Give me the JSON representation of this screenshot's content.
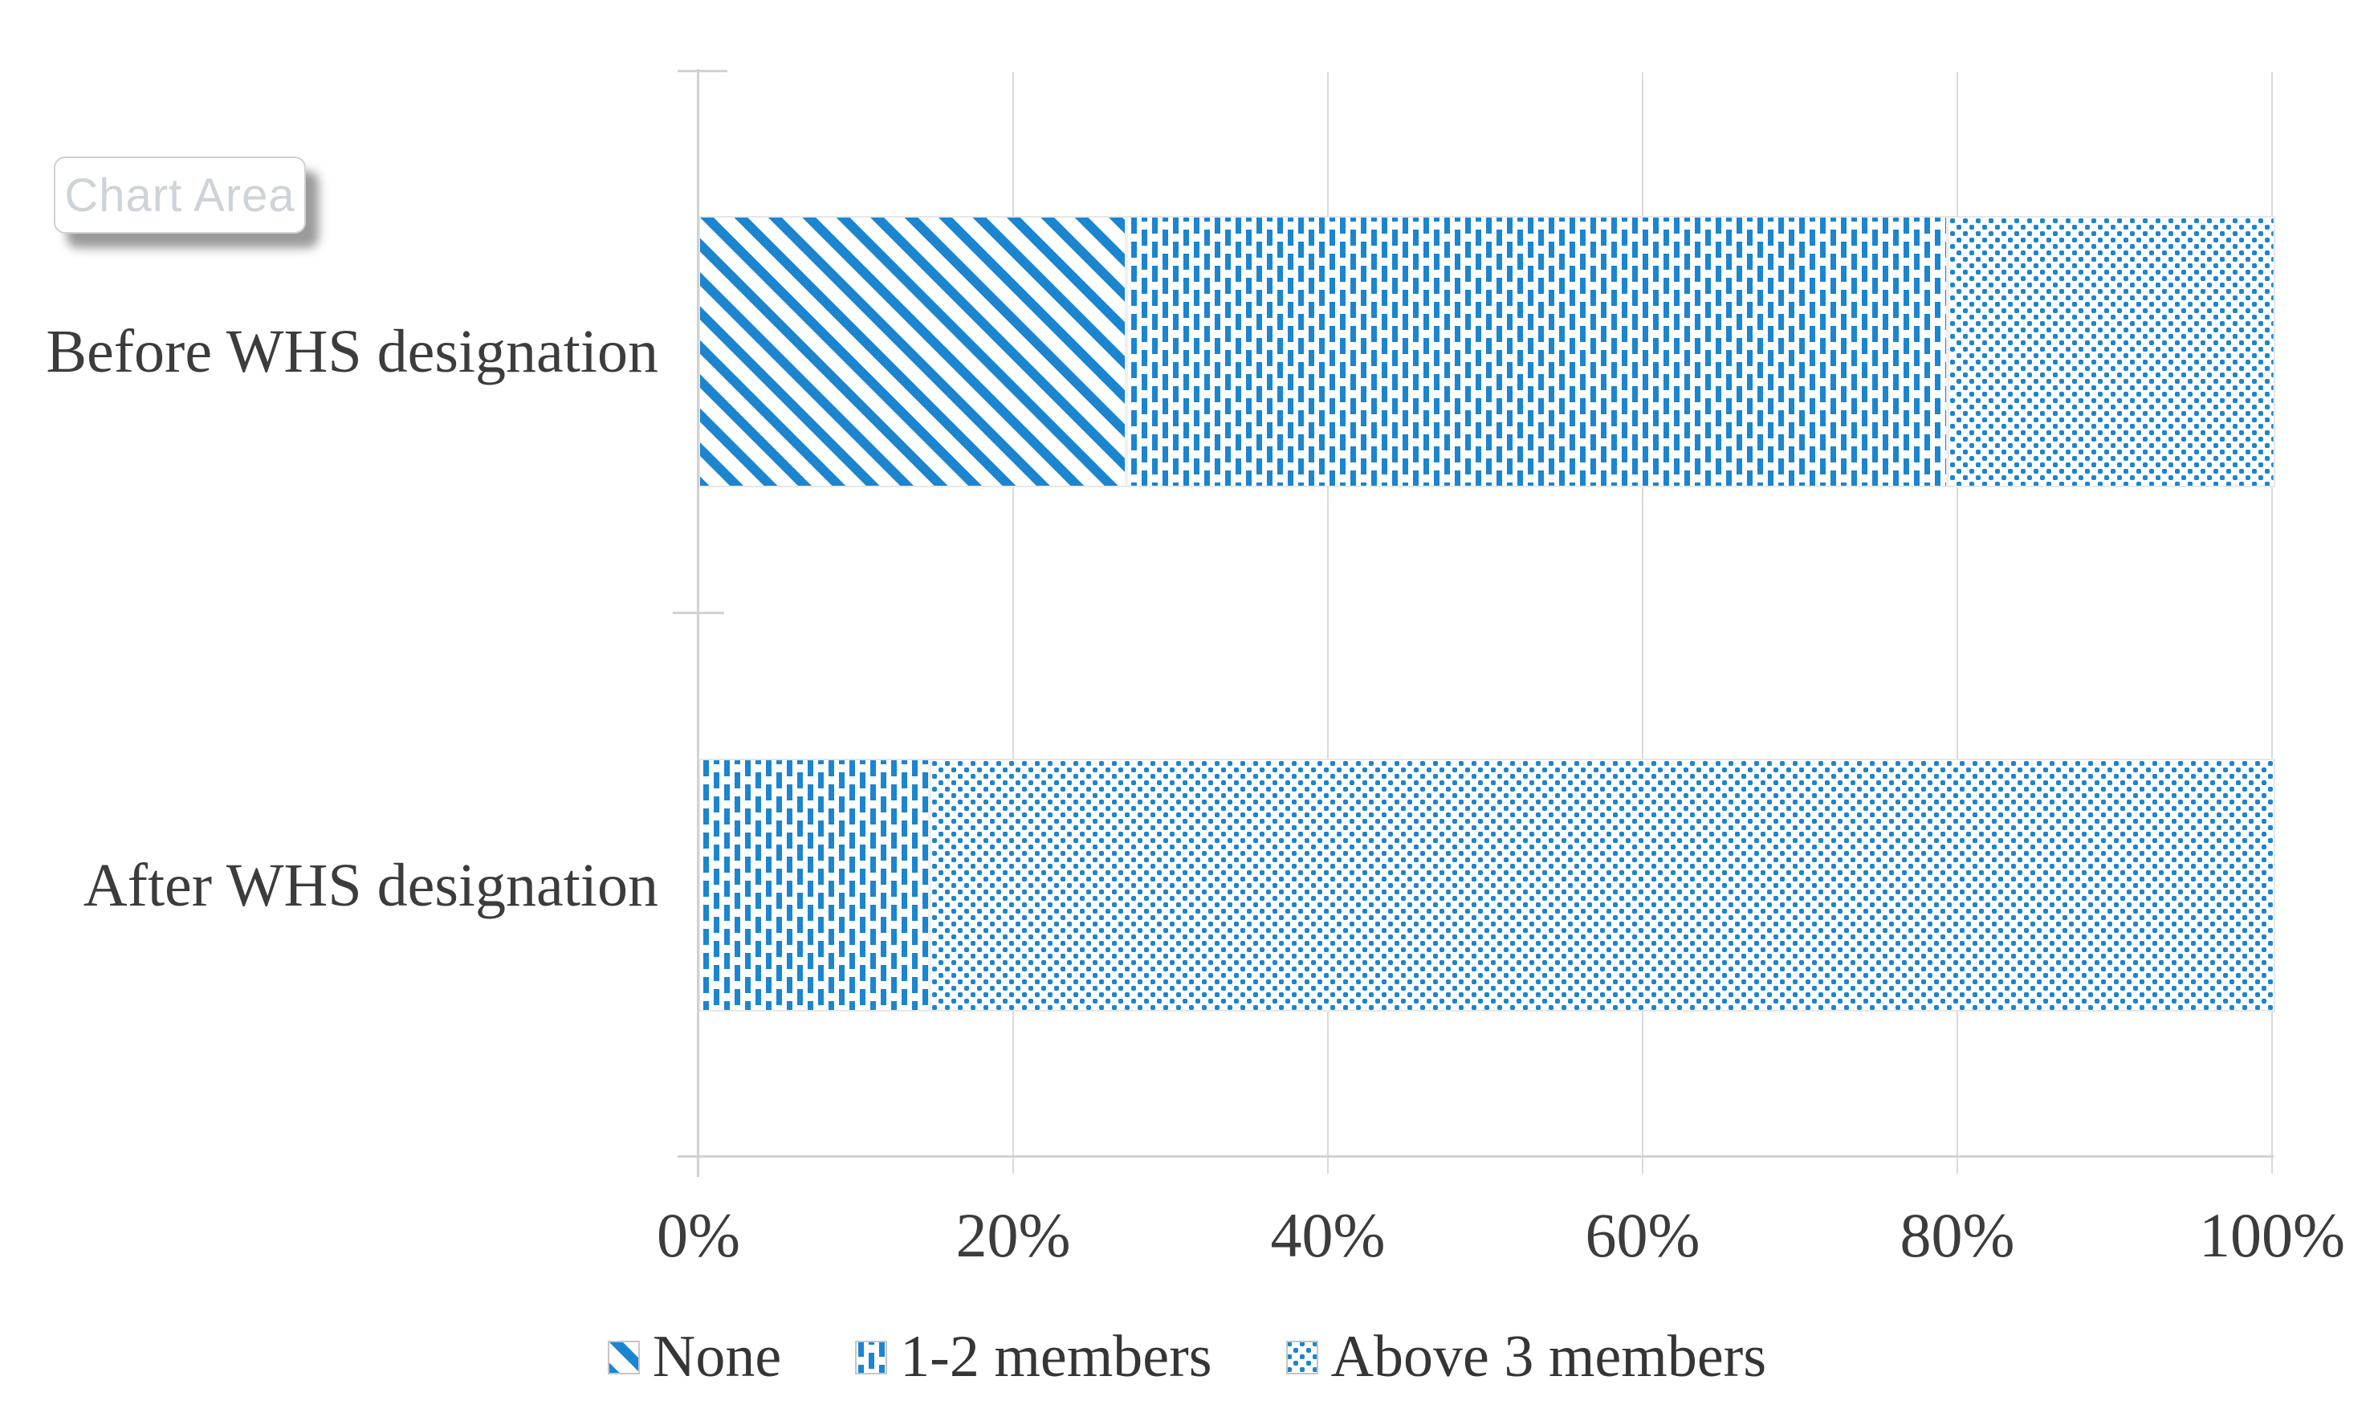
{
  "tooltip": {
    "label": "Chart Area"
  },
  "chart_data": {
    "type": "bar",
    "orientation": "horizontal",
    "stacked": true,
    "unit": "percent",
    "categories": [
      "Before WHS designation",
      "After WHS designation"
    ],
    "series": [
      {
        "name": "None",
        "pattern": "diagonal-stripes",
        "values": [
          27,
          0
        ]
      },
      {
        "name": "1-2 members",
        "pattern": "vertical-dashes",
        "values": [
          52.2,
          14.5
        ]
      },
      {
        "name": "Above 3 members",
        "pattern": "dots",
        "values": [
          20.8,
          85.5
        ]
      }
    ],
    "x_ticks": [
      "0%",
      "20%",
      "40%",
      "60%",
      "80%",
      "100%"
    ],
    "xlim": [
      0,
      100
    ],
    "grid": true,
    "legend_position": "bottom",
    "colors": {
      "accent": "#1B85CF",
      "gridline": "#DADADA",
      "axis": "#D2D2D2",
      "text": "#3C3C3C"
    }
  }
}
